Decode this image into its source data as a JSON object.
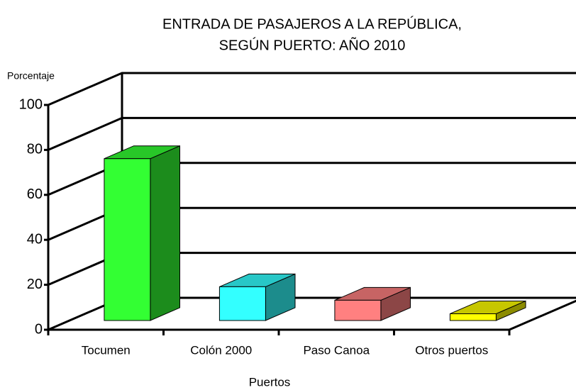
{
  "chart_data": {
    "type": "bar3d",
    "title": [
      "ENTRADA DE PASAJEROS A LA REPÚBLICA,",
      "SEGÚN PUERTO: AÑO 2010"
    ],
    "y_axis_label": "Porcentaje",
    "x_axis_label": "Puertos",
    "categories": [
      "Tocumen",
      "Colón 2000",
      "Paso Canoa",
      "Otros puertos"
    ],
    "values": [
      72,
      15,
      9,
      3
    ],
    "colors": [
      "#33ff33",
      "#33ffff",
      "#ff8080",
      "#ffff00"
    ],
    "ylim": [
      0,
      100
    ],
    "yticks": [
      0,
      20,
      40,
      60,
      80,
      100
    ],
    "grid": true
  }
}
